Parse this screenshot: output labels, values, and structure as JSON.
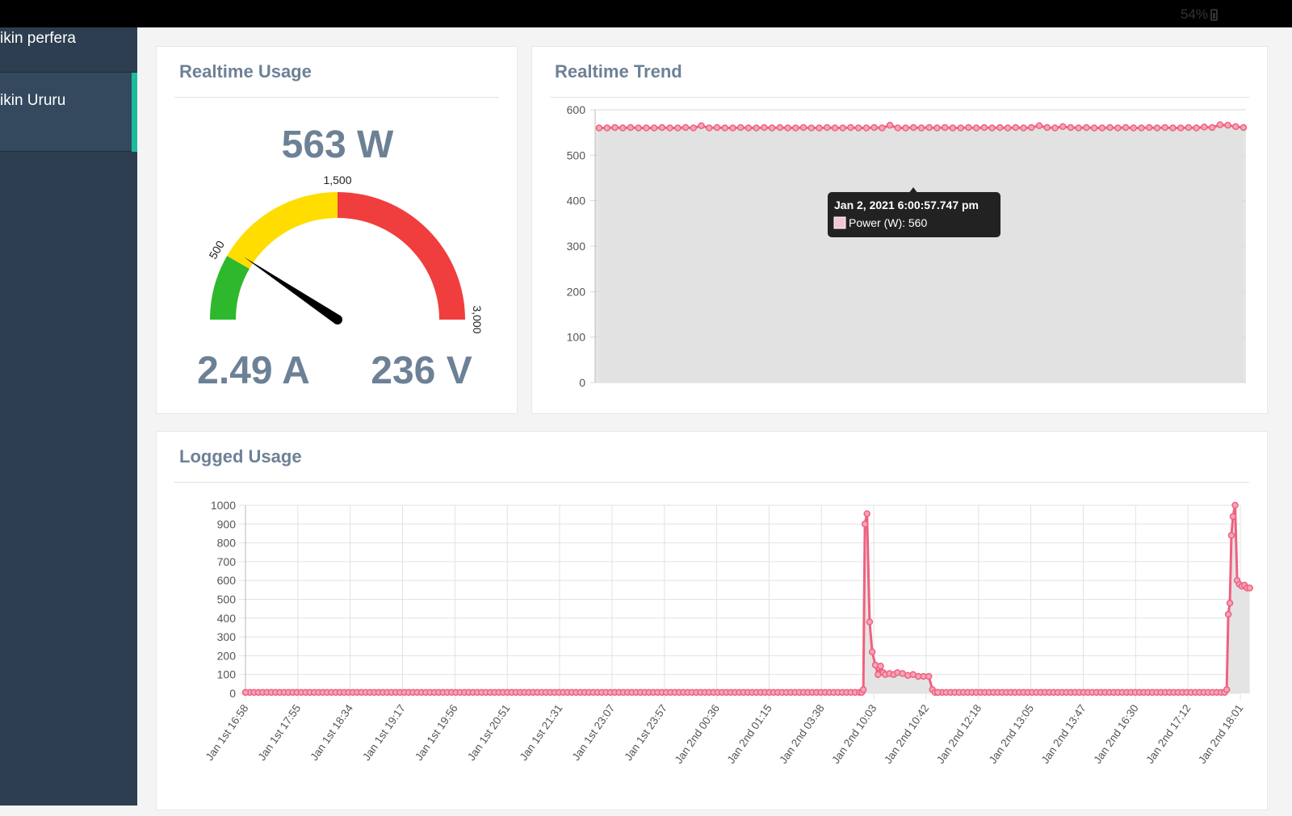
{
  "statusbar": {
    "battery": "54%"
  },
  "sidebar": {
    "items": [
      {
        "label": "ikin perfera"
      },
      {
        "label": "ikin Ururu"
      }
    ]
  },
  "realtime_usage": {
    "title": "Realtime Usage",
    "power": "563 W",
    "current": "2.49 A",
    "voltage": "236 V",
    "gauge": {
      "value": 563,
      "max": 3000,
      "ticks": [
        "500",
        "1,500",
        "3,000"
      ],
      "colors": {
        "green": "#2eb82e",
        "yellow": "#ffdd00",
        "red": "#f03e3e",
        "needle": "#000000"
      }
    }
  },
  "realtime_trend": {
    "title": "Realtime Trend",
    "tooltip": {
      "title": "Jan 2, 2021 6:00:57.747 pm",
      "line": "Power (W): 560"
    }
  },
  "logged_usage": {
    "title": "Logged Usage"
  },
  "chart_data": [
    {
      "type": "area",
      "title": "Realtime Trend",
      "series_color": "#f06080",
      "ylim": [
        0,
        600
      ],
      "yticks": [
        0,
        100,
        200,
        300,
        400,
        500,
        600
      ],
      "grid": true,
      "series": [
        {
          "name": "Power (W)",
          "values": [
            560,
            560,
            561,
            560,
            561,
            560,
            560,
            560,
            561,
            560,
            560,
            561,
            560,
            565,
            560,
            561,
            560,
            560,
            561,
            560,
            560,
            561,
            560,
            561,
            560,
            560,
            561,
            560,
            560,
            561,
            560,
            560,
            561,
            560,
            560,
            561,
            560,
            566,
            560,
            560,
            561,
            560,
            561,
            560,
            561,
            560,
            560,
            561,
            560,
            561,
            560,
            561,
            560,
            561,
            560,
            561,
            565,
            561,
            560,
            563,
            561,
            560,
            561,
            560,
            560,
            561,
            560,
            561,
            560,
            560,
            561,
            560,
            561,
            560,
            560,
            561,
            560,
            562,
            561,
            567,
            566,
            563,
            561
          ]
        }
      ]
    },
    {
      "type": "area",
      "title": "Logged Usage",
      "series_color": "#f06080",
      "ylim": [
        0,
        1000
      ],
      "yticks": [
        0,
        100,
        200,
        300,
        400,
        500,
        600,
        700,
        800,
        900,
        1000
      ],
      "grid": true,
      "categories": [
        "Jan 1st 16:58",
        "Jan 1st 17:55",
        "Jan 1st 18:34",
        "Jan 1st 19:17",
        "Jan 1st 19:56",
        "Jan 1st 20:51",
        "Jan 1st 21:31",
        "Jan 1st 23:07",
        "Jan 1st 23:57",
        "Jan 2nd 00:36",
        "Jan 2nd 01:15",
        "Jan 2nd 03:38",
        "Jan 2nd 10:03",
        "Jan 2nd 10:42",
        "Jan 2nd 12:18",
        "Jan 2nd 13:05",
        "Jan 2nd 13:47",
        "Jan 2nd 16:30",
        "Jan 2nd 17:12",
        "Jan 2nd 18:01"
      ],
      "series": [
        {
          "name": "Power (W)",
          "x": [
            0,
            11.77,
            11.8,
            11.83,
            11.87,
            11.92,
            11.97,
            12.03,
            12.08,
            12.13,
            12.18,
            12.22,
            12.3,
            12.38,
            12.45,
            12.55,
            12.65,
            12.75,
            12.85,
            12.95,
            13.05,
            13.12,
            13.17,
            13.22,
            18.7,
            18.74,
            18.77,
            18.8,
            18.83,
            18.86,
            18.9,
            18.94,
            18.98,
            19.03,
            19.08,
            19.13,
            19.18
          ],
          "values": [
            5,
            5,
            20,
            900,
            955,
            380,
            220,
            150,
            100,
            145,
            110,
            100,
            105,
            100,
            110,
            105,
            95,
            100,
            90,
            90,
            90,
            20,
            5,
            5,
            5,
            20,
            420,
            480,
            840,
            940,
            1000,
            600,
            580,
            570,
            575,
            560,
            560
          ]
        }
      ]
    }
  ]
}
